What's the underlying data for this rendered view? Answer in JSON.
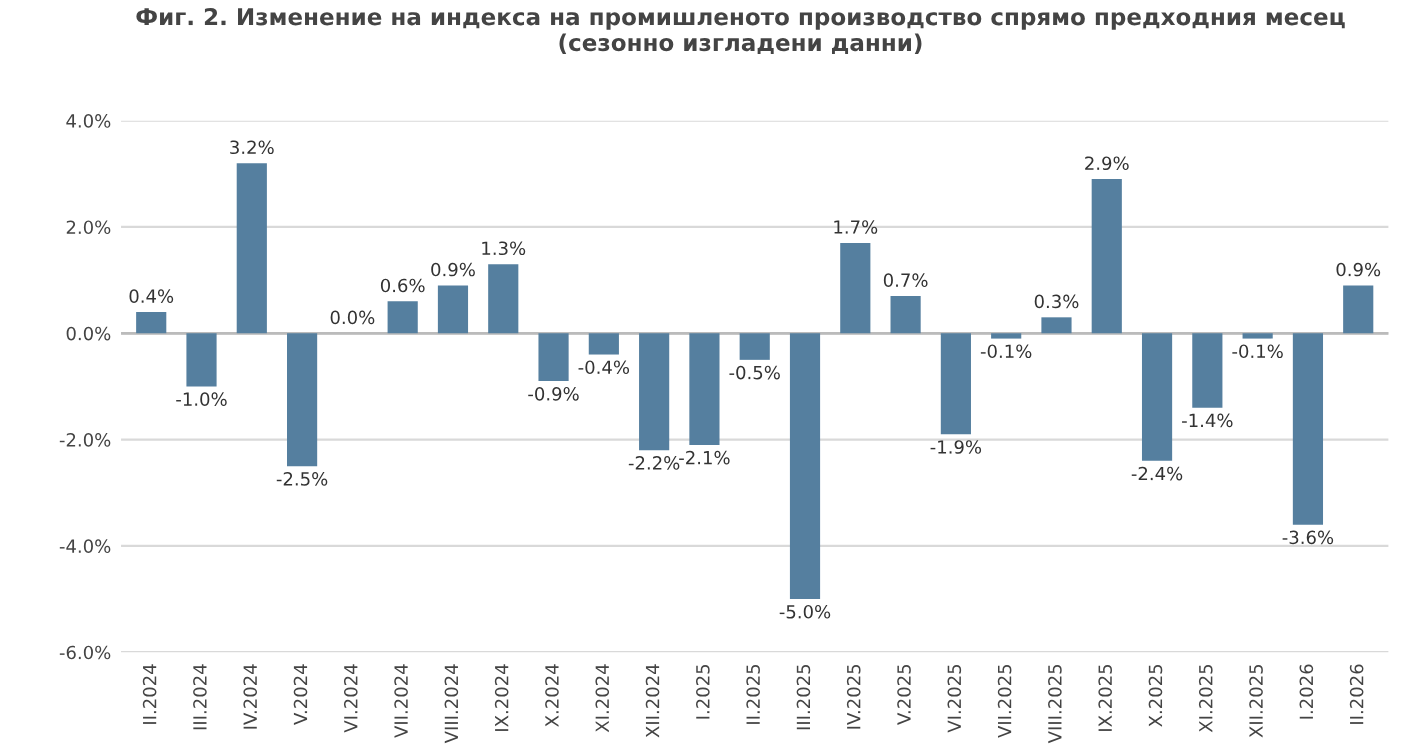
{
  "chart_data": {
    "type": "bar",
    "title": "Фиг. 2. Изменение на индекса на промишленото производство спрямо предходния месец\n(сезонно изгладени данни)",
    "categories": [
      "II.2024",
      "III.2024",
      "IV.2024",
      "V.2024",
      "VI.2024",
      "VII.2024",
      "VIII.2024",
      "IX.2024",
      "X.2024",
      "XI.2024",
      "XII.2024",
      "I.2025",
      "II.2025",
      "III.2025",
      "IV.2025",
      "V.2025",
      "VI.2025",
      "VII.2025",
      "VIII.2025",
      "IX.2025",
      "X.2025",
      "XI.2025",
      "XII.2025",
      "I.2026",
      "II.2026"
    ],
    "values": [
      0.4,
      -1.0,
      3.2,
      -2.5,
      0.0,
      0.6,
      0.9,
      1.3,
      -0.9,
      -0.4,
      -2.2,
      -2.1,
      -0.5,
      -5.0,
      1.7,
      0.7,
      -1.9,
      -0.1,
      0.3,
      2.9,
      -2.4,
      -1.4,
      -0.1,
      -3.6,
      0.9
    ],
    "value_labels": [
      "0.4%",
      "-1.0%",
      "3.2%",
      "-2.5%",
      "0.0%",
      "0.6%",
      "0.9%",
      "1.3%",
      "-0.9%",
      "-0.4%",
      "-2.2%",
      "-2.1%",
      "-0.5%",
      "-5.0%",
      "1.7%",
      "0.7%",
      "-1.9%",
      "-0.1%",
      "0.3%",
      "2.9%",
      "-2.4%",
      "-1.4%",
      "-0.1%",
      "-3.6%",
      "0.9%"
    ],
    "color": "#557f9f",
    "ylim": [
      -6,
      4
    ],
    "yticks": [
      {
        "value": -6,
        "label": "-6.0%"
      },
      {
        "value": -4,
        "label": "-4.0%"
      },
      {
        "value": -2,
        "label": "-2.0%"
      },
      {
        "value": 0,
        "label": "0.0%"
      },
      {
        "value": 2,
        "label": "2.0%"
      },
      {
        "value": 4,
        "label": "4.0%"
      }
    ],
    "grid": "y",
    "legend": false
  }
}
